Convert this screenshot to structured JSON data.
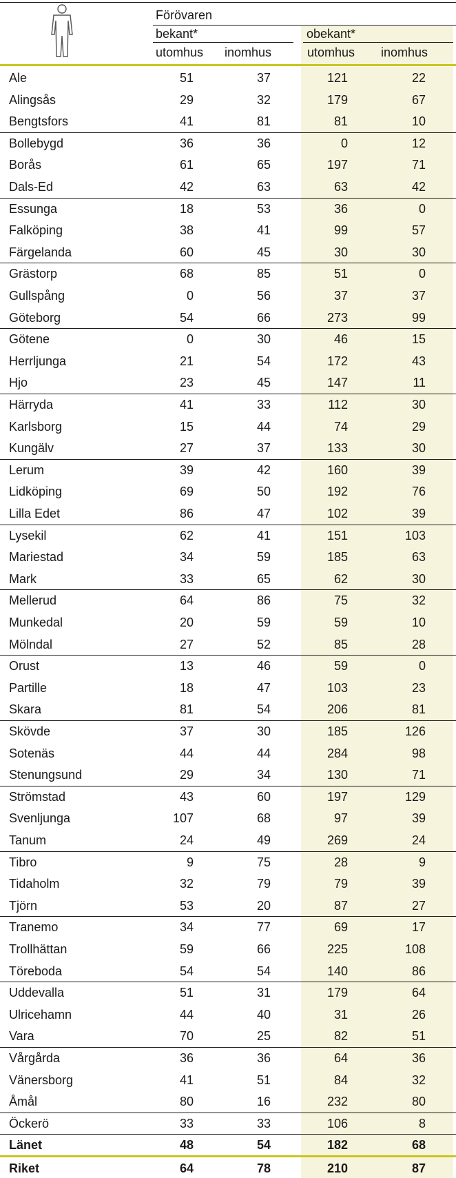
{
  "header": {
    "title": "Förövaren",
    "groups": [
      "bekant*",
      "obekant*"
    ],
    "columns": [
      "utomhus",
      "inomhus",
      "utomhus",
      "inomhus"
    ]
  },
  "rows": [
    [
      "Ale",
      51,
      37,
      121,
      22
    ],
    [
      "Alingsås",
      29,
      32,
      179,
      67
    ],
    [
      "Bengtsfors",
      41,
      81,
      81,
      10
    ],
    [
      "Bollebygd",
      36,
      36,
      0,
      12
    ],
    [
      "Borås",
      61,
      65,
      197,
      71
    ],
    [
      "Dals-Ed",
      42,
      63,
      63,
      42
    ],
    [
      "Essunga",
      18,
      53,
      36,
      0
    ],
    [
      "Falköping",
      38,
      41,
      99,
      57
    ],
    [
      "Färgelanda",
      60,
      45,
      30,
      30
    ],
    [
      "Grästorp",
      68,
      85,
      51,
      0
    ],
    [
      "Gullspång",
      0,
      56,
      37,
      37
    ],
    [
      "Göteborg",
      54,
      66,
      273,
      99
    ],
    [
      "Götene",
      0,
      30,
      46,
      15
    ],
    [
      "Herrljunga",
      21,
      54,
      172,
      43
    ],
    [
      "Hjo",
      23,
      45,
      147,
      11
    ],
    [
      "Härryda",
      41,
      33,
      112,
      30
    ],
    [
      "Karlsborg",
      15,
      44,
      74,
      29
    ],
    [
      "Kungälv",
      27,
      37,
      133,
      30
    ],
    [
      "Lerum",
      39,
      42,
      160,
      39
    ],
    [
      "Lidköping",
      69,
      50,
      192,
      76
    ],
    [
      "Lilla Edet",
      86,
      47,
      102,
      39
    ],
    [
      "Lysekil",
      62,
      41,
      151,
      103
    ],
    [
      "Mariestad",
      34,
      59,
      185,
      63
    ],
    [
      "Mark",
      33,
      65,
      62,
      30
    ],
    [
      "Mellerud",
      64,
      86,
      75,
      32
    ],
    [
      "Munkedal",
      20,
      59,
      59,
      10
    ],
    [
      "Mölndal",
      27,
      52,
      85,
      28
    ],
    [
      "Orust",
      13,
      46,
      59,
      0
    ],
    [
      "Partille",
      18,
      47,
      103,
      23
    ],
    [
      "Skara",
      81,
      54,
      206,
      81
    ],
    [
      "Skövde",
      37,
      30,
      185,
      126
    ],
    [
      "Sotenäs",
      44,
      44,
      284,
      98
    ],
    [
      "Stenungsund",
      29,
      34,
      130,
      71
    ],
    [
      "Strömstad",
      43,
      60,
      197,
      129
    ],
    [
      "Svenljunga",
      107,
      68,
      97,
      39
    ],
    [
      "Tanum",
      24,
      49,
      269,
      24
    ],
    [
      "Tibro",
      9,
      75,
      28,
      9
    ],
    [
      "Tidaholm",
      32,
      79,
      79,
      39
    ],
    [
      "Tjörn",
      53,
      20,
      87,
      27
    ],
    [
      "Tranemo",
      34,
      77,
      69,
      17
    ],
    [
      "Trollhättan",
      59,
      66,
      225,
      108
    ],
    [
      "Töreboda",
      54,
      54,
      140,
      86
    ],
    [
      "Uddevalla",
      51,
      31,
      179,
      64
    ],
    [
      "Ulricehamn",
      44,
      40,
      31,
      26
    ],
    [
      "Vara",
      70,
      25,
      82,
      51
    ],
    [
      "Vårgårda",
      36,
      36,
      64,
      36
    ],
    [
      "Vänersborg",
      41,
      51,
      84,
      32
    ],
    [
      "Åmål",
      80,
      16,
      232,
      80
    ],
    [
      "Öckerö",
      33,
      33,
      106,
      8
    ]
  ],
  "totals": [
    [
      "Länet",
      48,
      54,
      182,
      68
    ],
    [
      "Riket",
      64,
      78,
      210,
      87
    ]
  ]
}
